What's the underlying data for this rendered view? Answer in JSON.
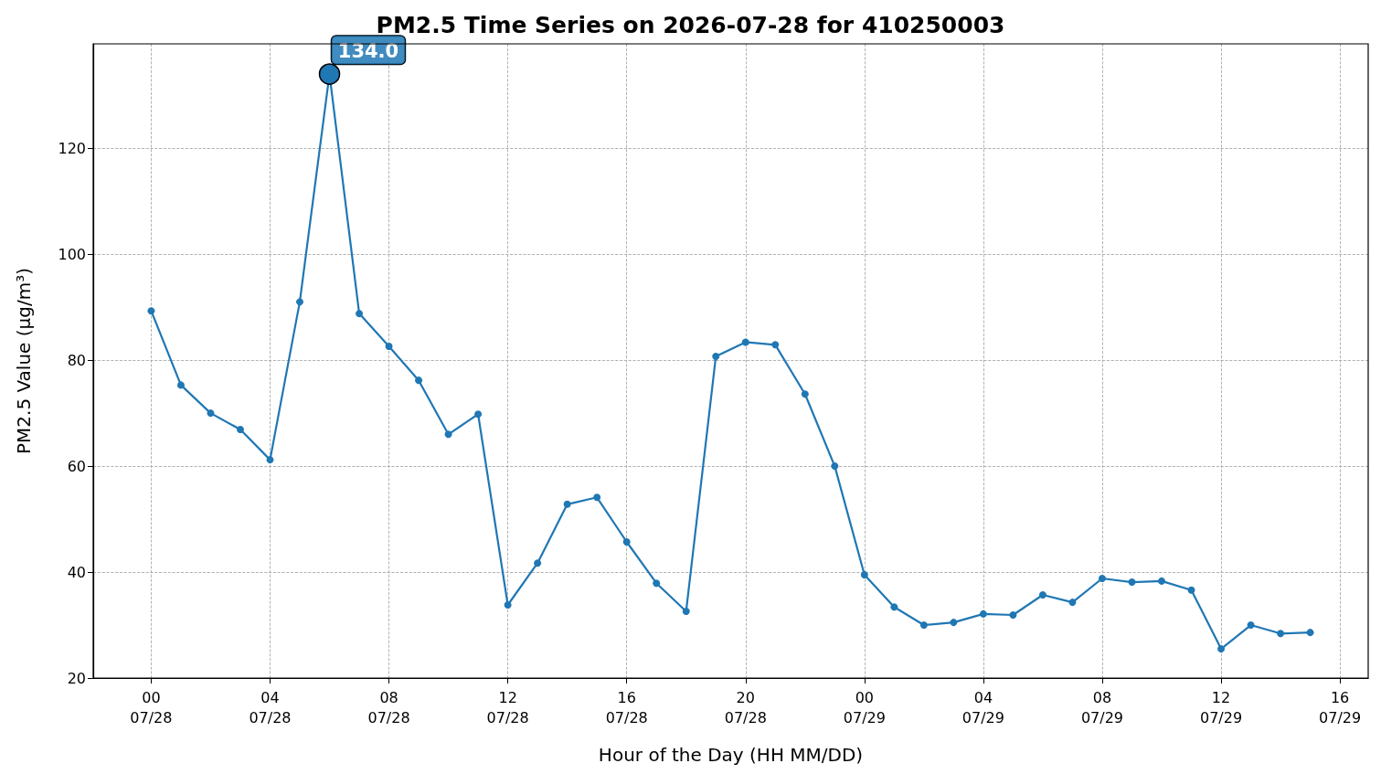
{
  "chart_data": {
    "type": "line",
    "title": "PM2.5 Time Series on 2026-07-28 for 410250003",
    "xlabel": "Hour of the Day (HH MM/DD)",
    "ylabel": "PM2.5 Value (μg/m³)",
    "x": [
      "2026-07-28T00:00",
      "2026-07-28T01:00",
      "2026-07-28T02:00",
      "2026-07-28T03:00",
      "2026-07-28T04:00",
      "2026-07-28T05:00",
      "2026-07-28T06:00",
      "2026-07-28T07:00",
      "2026-07-28T08:00",
      "2026-07-28T09:00",
      "2026-07-28T10:00",
      "2026-07-28T11:00",
      "2026-07-28T12:00",
      "2026-07-28T13:00",
      "2026-07-28T14:00",
      "2026-07-28T15:00",
      "2026-07-28T16:00",
      "2026-07-28T17:00",
      "2026-07-28T18:00",
      "2026-07-28T19:00",
      "2026-07-28T20:00",
      "2026-07-28T21:00",
      "2026-07-28T22:00",
      "2026-07-28T23:00",
      "2026-07-29T00:00",
      "2026-07-29T01:00",
      "2026-07-29T02:00",
      "2026-07-29T03:00",
      "2026-07-29T04:00",
      "2026-07-29T05:00",
      "2026-07-29T06:00",
      "2026-07-29T07:00",
      "2026-07-29T08:00",
      "2026-07-29T09:00",
      "2026-07-29T10:00",
      "2026-07-29T11:00",
      "2026-07-29T12:00",
      "2026-07-29T13:00",
      "2026-07-29T14:00",
      "2026-07-29T15:00"
    ],
    "series": [
      {
        "color": "#1f77b4",
        "values": [
          89.3,
          75.3,
          70.0,
          66.9,
          61.2,
          91.0,
          134.0,
          88.8,
          82.6,
          76.2,
          66.0,
          69.8,
          33.8,
          41.7,
          52.8,
          54.1,
          45.7,
          37.9,
          32.6,
          80.7,
          83.4,
          82.9,
          73.6,
          60.0,
          39.5,
          33.4,
          30.0,
          30.5,
          32.1,
          31.9,
          35.7,
          34.3,
          38.8,
          38.1,
          38.3,
          36.6,
          25.5,
          30.0,
          28.4,
          28.6
        ]
      }
    ],
    "xlim": [
      "2026-07-27T22:03",
      "2026-07-29T16:57"
    ],
    "xticks": [
      {
        "value": "2026-07-28T00:00",
        "label": "00\n07/28"
      },
      {
        "value": "2026-07-28T04:00",
        "label": "04\n07/28"
      },
      {
        "value": "2026-07-28T08:00",
        "label": "08\n07/28"
      },
      {
        "value": "2026-07-28T12:00",
        "label": "12\n07/28"
      },
      {
        "value": "2026-07-28T16:00",
        "label": "16\n07/28"
      },
      {
        "value": "2026-07-28T20:00",
        "label": "20\n07/28"
      },
      {
        "value": "2026-07-29T00:00",
        "label": "00\n07/29"
      },
      {
        "value": "2026-07-29T04:00",
        "label": "04\n07/29"
      },
      {
        "value": "2026-07-29T08:00",
        "label": "08\n07/29"
      },
      {
        "value": "2026-07-29T12:00",
        "label": "12\n07/29"
      },
      {
        "value": "2026-07-29T16:00",
        "label": "16\n07/29"
      }
    ],
    "ylim": [
      20,
      139.7
    ],
    "yticks": [
      20,
      40,
      60,
      80,
      100,
      120
    ],
    "annotations": [
      {
        "text": "134.0",
        "x": "2026-07-28T06:00",
        "y": 134.0
      }
    ],
    "grid": true,
    "marker": "circle",
    "line_style": "solid"
  }
}
